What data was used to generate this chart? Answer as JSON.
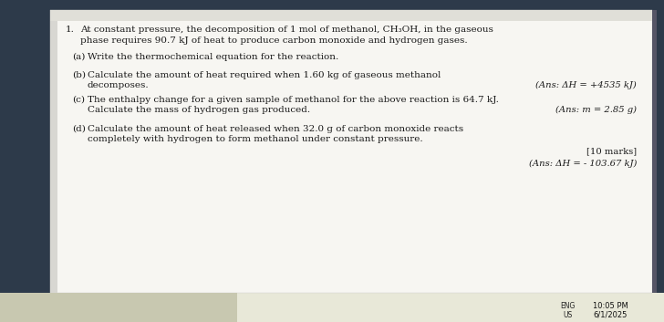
{
  "bg_outer": "#2d3a4a",
  "bg_taskbar": "#e8e8d8",
  "paper_color": "#f5f4f0",
  "paper_left_color": "#e8e7e2",
  "text_color": "#1a1a1a",
  "question_number": "1.",
  "intro_line1": "At constant pressure, the decomposition of 1 mol of methanol, CH₃OH, in the gaseous",
  "intro_line2": "phase requires 90.7 kJ of heat to produce carbon monoxide and hydrogen gases.",
  "part_a_label": "(a)",
  "part_a_text": "Write the thermochemical equation for the reaction.",
  "part_b_label": "(b)",
  "part_b_line1": "Calculate the amount of heat required when 1.60 kg of gaseous methanol",
  "part_b_line2": "decomposes.",
  "part_b_ans": "(Ans: ΔH = +4535 kJ)",
  "part_c_label": "(c)",
  "part_c_line1": "The enthalpy change for a given sample of methanol for the above reaction is 64.7 kJ.",
  "part_c_line2": "Calculate the mass of hydrogen gas produced.",
  "part_c_ans": "(Ans: m = 2.85 g)",
  "part_d_label": "(d)",
  "part_d_line1": "Calculate the amount of heat released when 32.0 g of carbon monoxide reacts",
  "part_d_line2": "completely with hydrogen to form methanol under constant pressure.",
  "part_d_marks": "[10 marks]",
  "part_d_ans": "(Ans: ΔH = - 103.67 kJ)",
  "timestamp_line1": "10:05 PM",
  "timestamp_line2": "6/1/2025",
  "eng_label": "ENG\nUS",
  "main_fontsize": 7.5,
  "ans_fontsize": 7.2,
  "small_fontsize": 6.0
}
